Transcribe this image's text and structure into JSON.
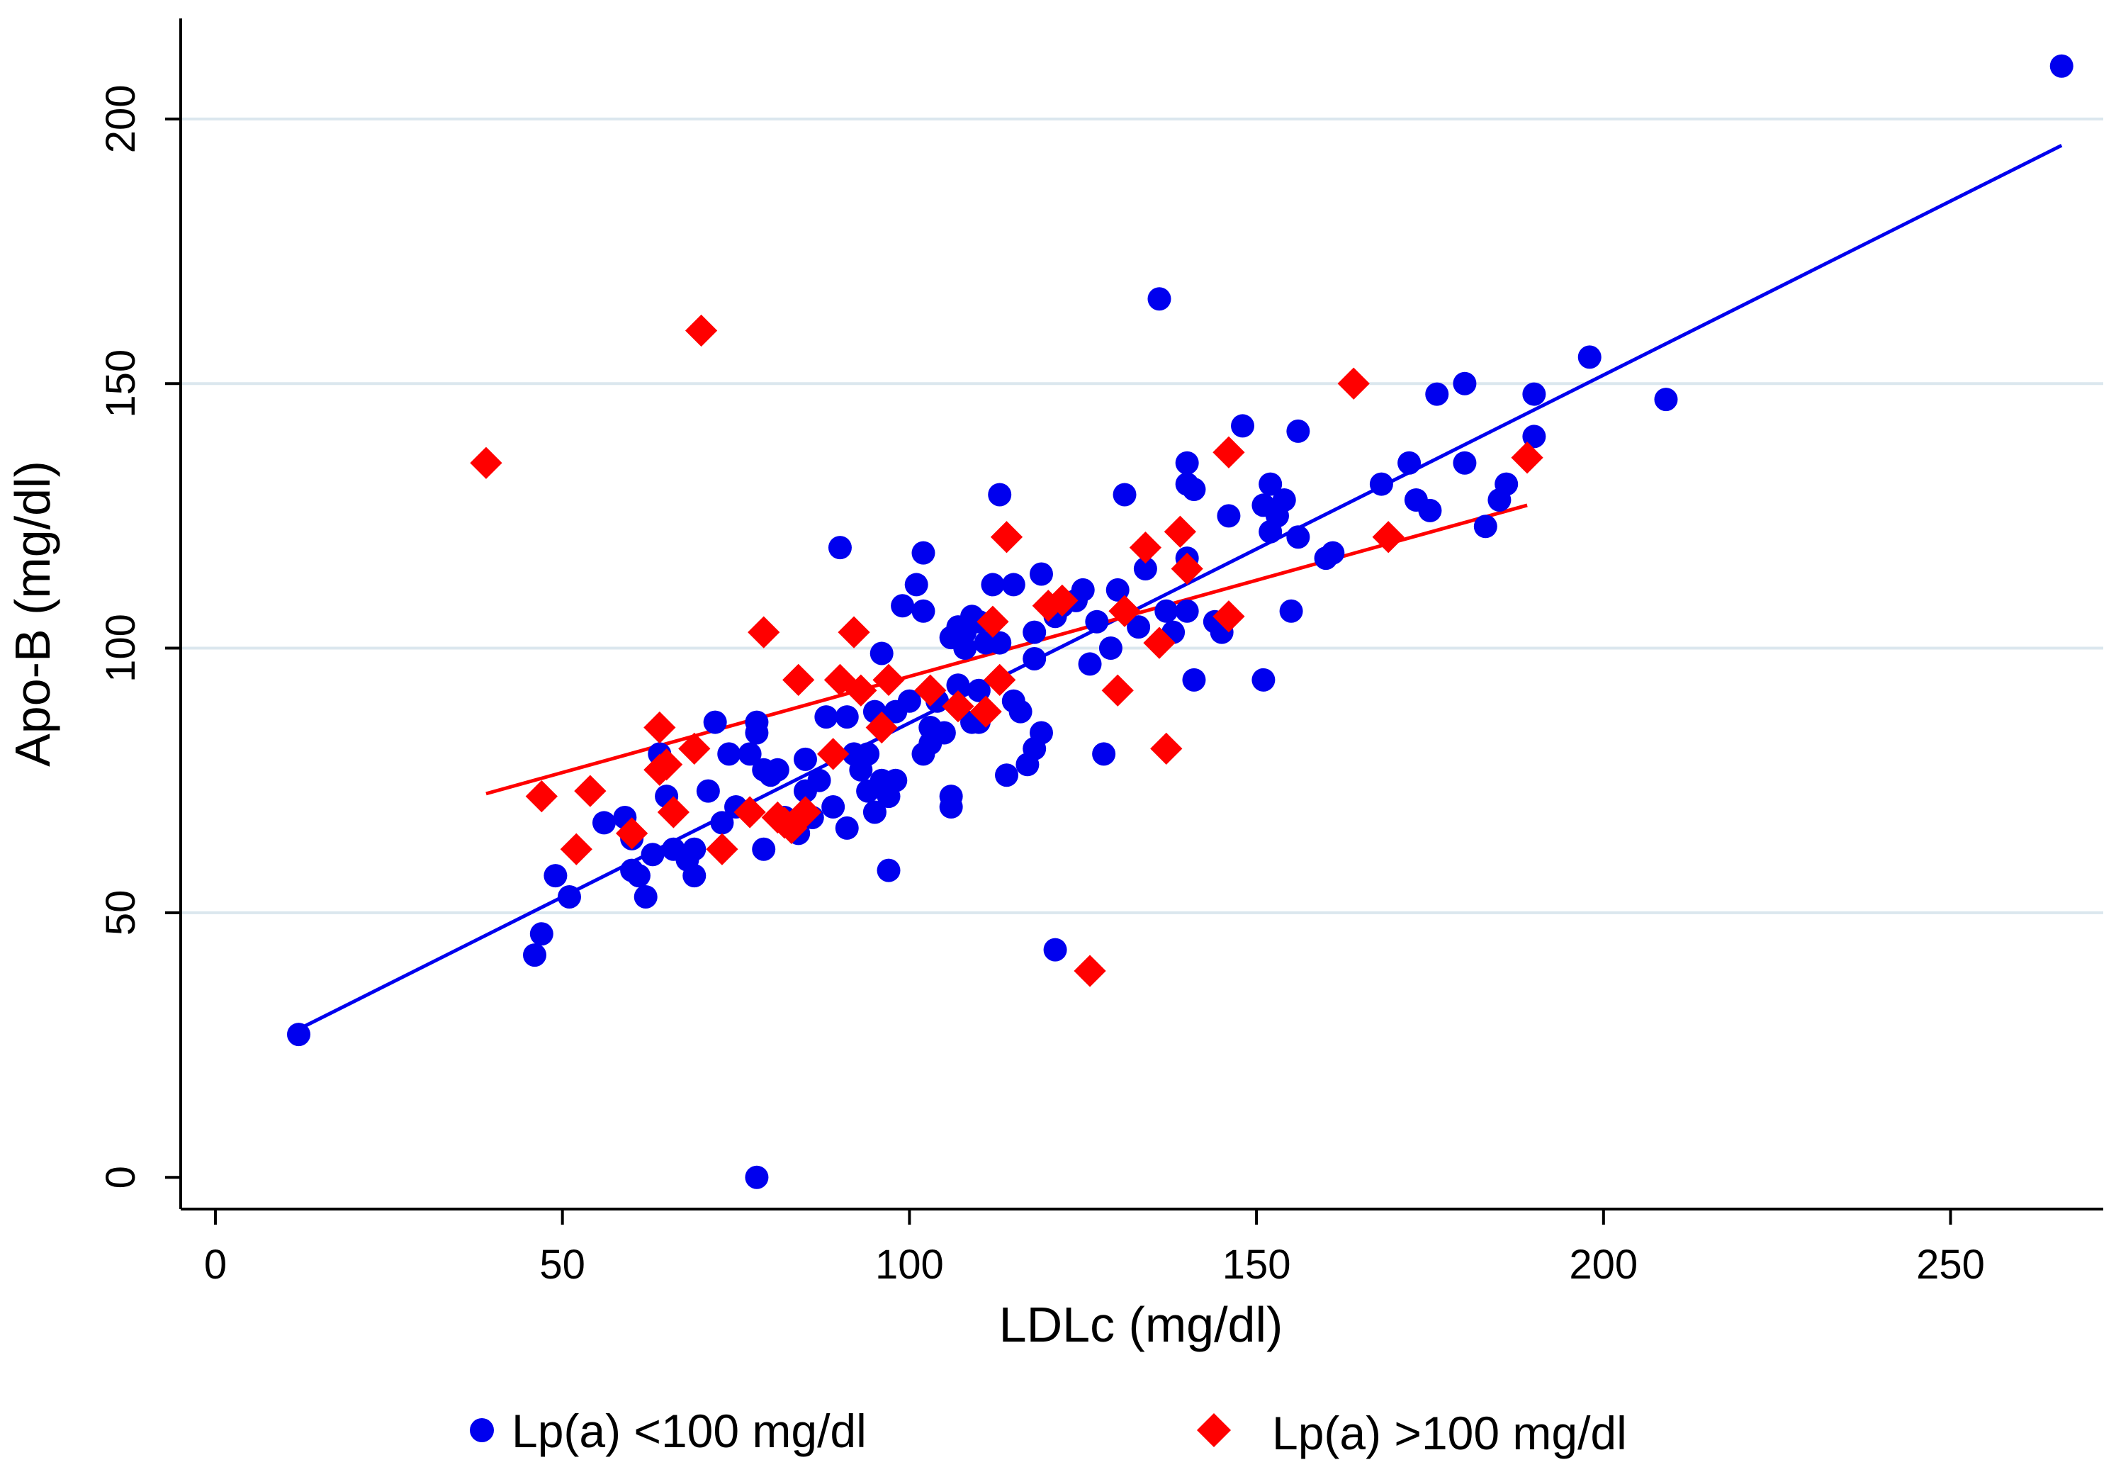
{
  "chart_data": {
    "type": "scatter",
    "title": "",
    "xlabel": "LDLc (mg/dl)",
    "ylabel": "Apo-B (mg/dl)",
    "xlim": [
      -5,
      272
    ],
    "ylim": [
      -6,
      219
    ],
    "xticks": [
      0,
      50,
      100,
      150,
      200,
      250
    ],
    "yticks": [
      0,
      50,
      100,
      150,
      200
    ],
    "grid": "horizontal",
    "legend_position": "bottom",
    "series": [
      {
        "name": "Lp(a) <100 mg/dl",
        "color": "#0000ee",
        "marker": "circle",
        "fit_line": [
          [
            12,
            28
          ],
          [
            266,
            195
          ]
        ],
        "points": [
          [
            12,
            27
          ],
          [
            46,
            42
          ],
          [
            47,
            46
          ],
          [
            49,
            57
          ],
          [
            51,
            53
          ],
          [
            56,
            67
          ],
          [
            59,
            68
          ],
          [
            60,
            64
          ],
          [
            60,
            58
          ],
          [
            61,
            57
          ],
          [
            62,
            53
          ],
          [
            63,
            61
          ],
          [
            64,
            80
          ],
          [
            65,
            72
          ],
          [
            66,
            62
          ],
          [
            68,
            60
          ],
          [
            69,
            57
          ],
          [
            69,
            62
          ],
          [
            71,
            73
          ],
          [
            72,
            86
          ],
          [
            73,
            67
          ],
          [
            74,
            80
          ],
          [
            75,
            70
          ],
          [
            77,
            80
          ],
          [
            78,
            86
          ],
          [
            78,
            84
          ],
          [
            79,
            62
          ],
          [
            79,
            77
          ],
          [
            80,
            76
          ],
          [
            81,
            77
          ],
          [
            82,
            68
          ],
          [
            83,
            67
          ],
          [
            84,
            65
          ],
          [
            85,
            79
          ],
          [
            85,
            73
          ],
          [
            86,
            68
          ],
          [
            87,
            75
          ],
          [
            88,
            87
          ],
          [
            89,
            70
          ],
          [
            90,
            119
          ],
          [
            91,
            87
          ],
          [
            91,
            66
          ],
          [
            92,
            80
          ],
          [
            93,
            77
          ],
          [
            94,
            80
          ],
          [
            94,
            73
          ],
          [
            95,
            69
          ],
          [
            95,
            88
          ],
          [
            96,
            99
          ],
          [
            96,
            75
          ],
          [
            97,
            58
          ],
          [
            97,
            72
          ],
          [
            98,
            75
          ],
          [
            98,
            88
          ],
          [
            99,
            108
          ],
          [
            100,
            90
          ],
          [
            101,
            112
          ],
          [
            102,
            118
          ],
          [
            102,
            107
          ],
          [
            102,
            80
          ],
          [
            103,
            85
          ],
          [
            103,
            82
          ],
          [
            104,
            90
          ],
          [
            105,
            84
          ],
          [
            106,
            102
          ],
          [
            106,
            72
          ],
          [
            106,
            70
          ],
          [
            107,
            104
          ],
          [
            107,
            93
          ],
          [
            108,
            100
          ],
          [
            108,
            103
          ],
          [
            109,
            106
          ],
          [
            109,
            86
          ],
          [
            110,
            105
          ],
          [
            110,
            92
          ],
          [
            110,
            86
          ],
          [
            111,
            101
          ],
          [
            112,
            112
          ],
          [
            113,
            129
          ],
          [
            113,
            101
          ],
          [
            114,
            76
          ],
          [
            115,
            112
          ],
          [
            115,
            90
          ],
          [
            116,
            88
          ],
          [
            117,
            78
          ],
          [
            118,
            81
          ],
          [
            118,
            103
          ],
          [
            118,
            98
          ],
          [
            119,
            114
          ],
          [
            119,
            84
          ],
          [
            121,
            43
          ],
          [
            121,
            106
          ],
          [
            122,
            108
          ],
          [
            124,
            109
          ],
          [
            125,
            111
          ],
          [
            126,
            97
          ],
          [
            127,
            105
          ],
          [
            128,
            80
          ],
          [
            129,
            100
          ],
          [
            130,
            111
          ],
          [
            131,
            129
          ],
          [
            133,
            104
          ],
          [
            134,
            115
          ],
          [
            136,
            166
          ],
          [
            137,
            107
          ],
          [
            138,
            103
          ],
          [
            140,
            135
          ],
          [
            140,
            131
          ],
          [
            140,
            117
          ],
          [
            140,
            107
          ],
          [
            141,
            130
          ],
          [
            141,
            94
          ],
          [
            144,
            105
          ],
          [
            145,
            103
          ],
          [
            146,
            125
          ],
          [
            148,
            142
          ],
          [
            151,
            127
          ],
          [
            151,
            94
          ],
          [
            152,
            122
          ],
          [
            152,
            131
          ],
          [
            153,
            125
          ],
          [
            154,
            128
          ],
          [
            155,
            107
          ],
          [
            156,
            141
          ],
          [
            156,
            121
          ],
          [
            160,
            117
          ],
          [
            161,
            118
          ],
          [
            168,
            131
          ],
          [
            172,
            135
          ],
          [
            173,
            128
          ],
          [
            175,
            126
          ],
          [
            176,
            148
          ],
          [
            180,
            150
          ],
          [
            180,
            135
          ],
          [
            183,
            123
          ],
          [
            185,
            128
          ],
          [
            186,
            131
          ],
          [
            190,
            148
          ],
          [
            190,
            140
          ],
          [
            198,
            155
          ],
          [
            209,
            147
          ],
          [
            266,
            210
          ],
          [
            78,
            0
          ]
        ]
      },
      {
        "name": "Lp(a) >100 mg/dl",
        "color": "#ff0000",
        "marker": "diamond",
        "fit_line": [
          [
            39,
            72.5
          ],
          [
            189,
            127
          ]
        ],
        "points": [
          [
            39,
            135
          ],
          [
            47,
            72
          ],
          [
            52,
            62
          ],
          [
            54,
            73
          ],
          [
            60,
            65
          ],
          [
            64,
            85
          ],
          [
            64,
            77
          ],
          [
            65,
            78
          ],
          [
            66,
            69
          ],
          [
            69,
            81
          ],
          [
            70,
            160
          ],
          [
            73,
            62
          ],
          [
            77,
            69
          ],
          [
            79,
            103
          ],
          [
            81,
            68
          ],
          [
            82,
            67
          ],
          [
            83,
            66
          ],
          [
            84,
            94
          ],
          [
            85,
            69
          ],
          [
            89,
            80
          ],
          [
            90,
            94
          ],
          [
            92,
            103
          ],
          [
            93,
            92
          ],
          [
            96,
            85
          ],
          [
            97,
            94
          ],
          [
            103,
            92
          ],
          [
            107,
            89
          ],
          [
            111,
            88
          ],
          [
            112,
            105
          ],
          [
            113,
            94
          ],
          [
            114,
            121
          ],
          [
            120,
            108
          ],
          [
            122,
            109
          ],
          [
            126,
            39
          ],
          [
            130,
            92
          ],
          [
            131,
            107
          ],
          [
            134,
            119
          ],
          [
            136,
            101
          ],
          [
            137,
            81
          ],
          [
            139,
            122
          ],
          [
            140,
            115
          ],
          [
            146,
            137
          ],
          [
            146,
            106
          ],
          [
            164,
            150
          ],
          [
            169,
            121
          ],
          [
            189,
            136
          ]
        ]
      }
    ]
  }
}
